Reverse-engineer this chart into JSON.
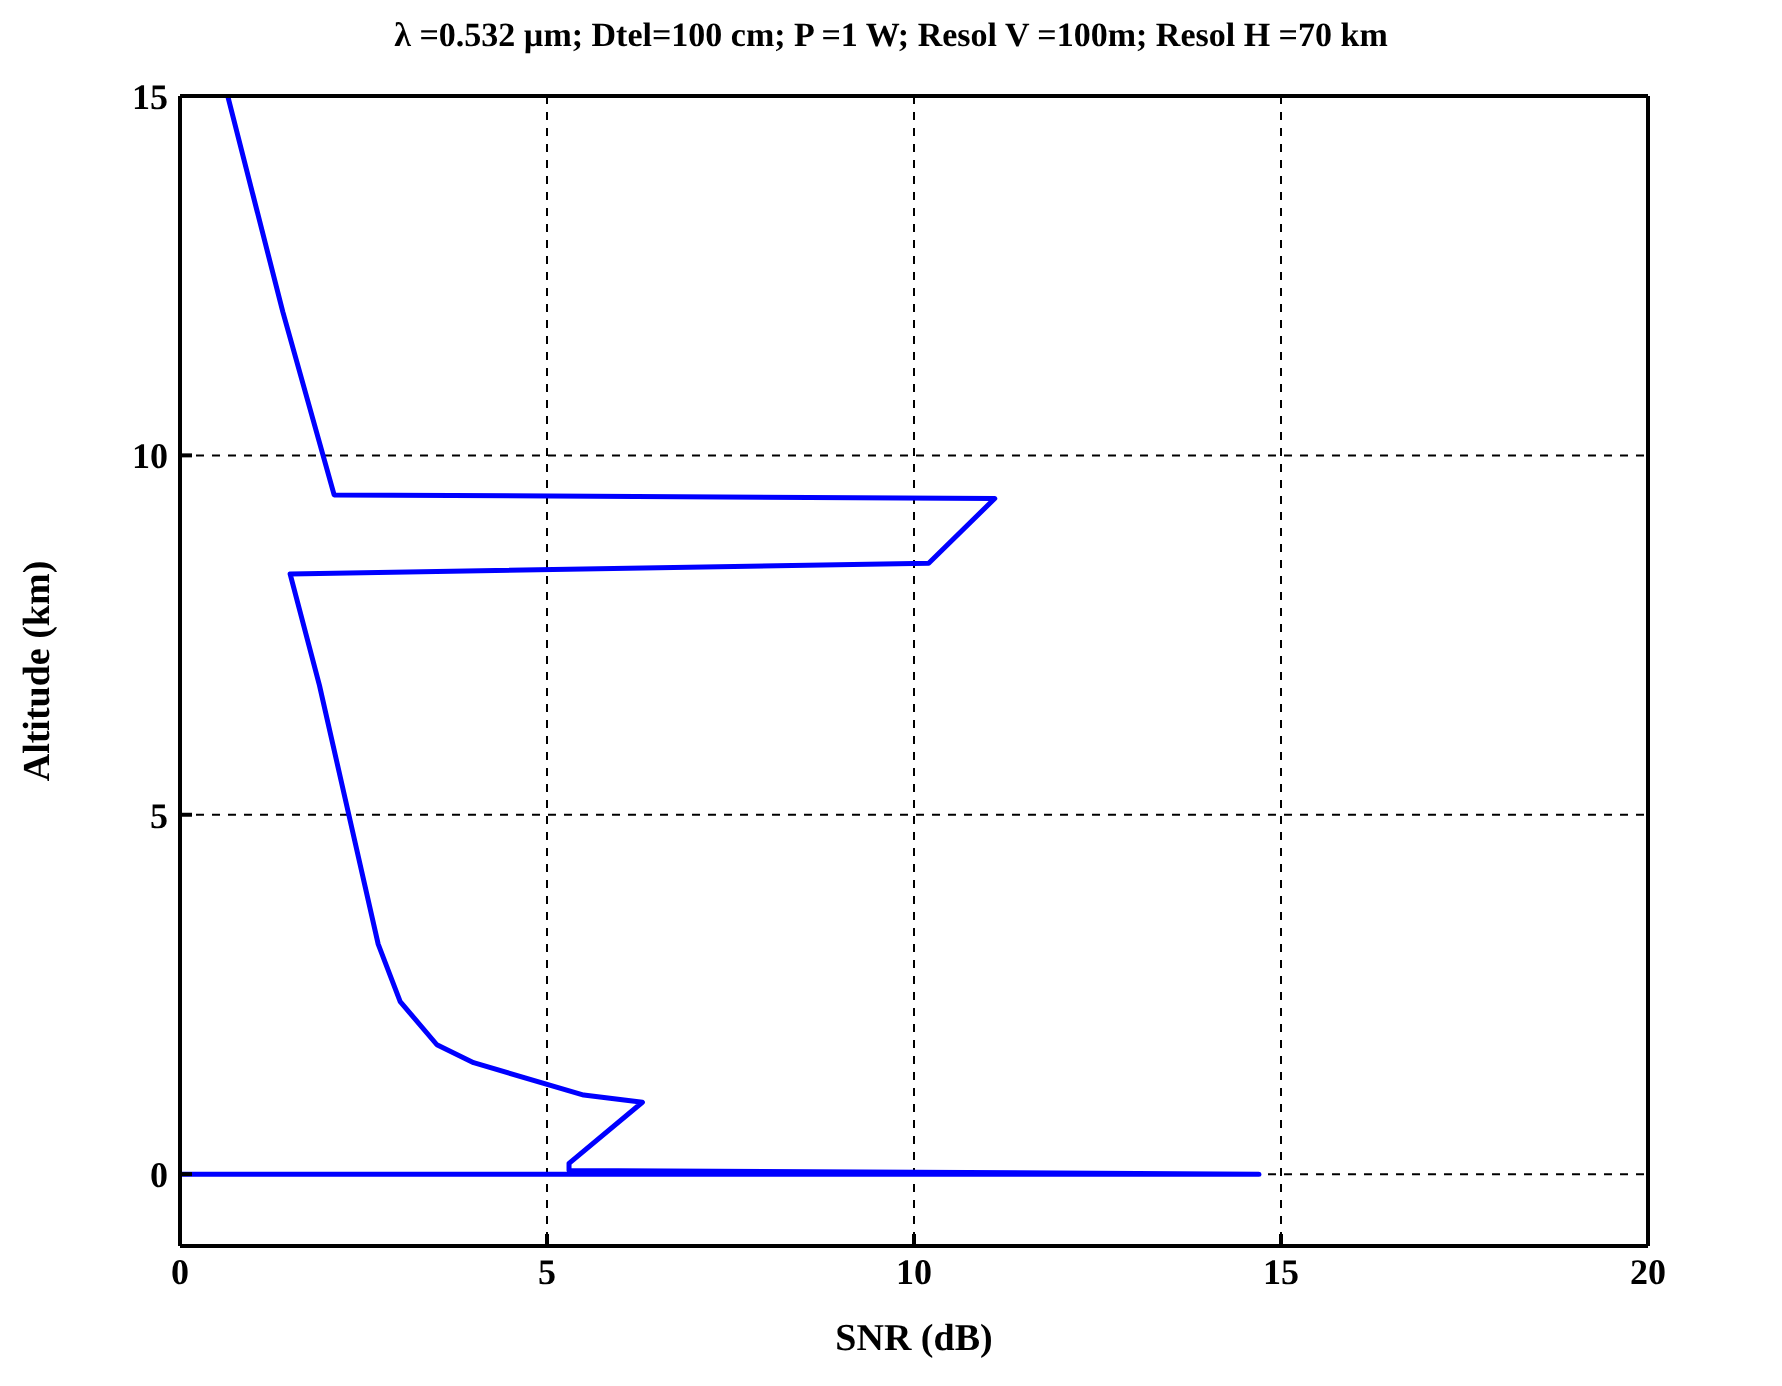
{
  "chart_data": {
    "type": "line",
    "title": "λ =0.532 µm;  Dtel=100 cm; P =1 W;  Resol V =100m;  Resol H =70 km",
    "xlabel": "SNR (dB)",
    "ylabel": "Altitude (km)",
    "x": [
      0,
      14.7,
      5.3,
      5.3,
      6.3,
      5.5,
      4.0,
      3.5,
      3.0,
      2.7,
      2.3,
      1.9,
      1.5,
      10.2,
      11.1,
      2.1,
      1.4,
      0.65
    ],
    "series": [
      {
        "color": "#0000ff",
        "values": [
          0,
          0,
          0.05,
          0.15,
          1.0,
          1.1,
          1.55,
          1.8,
          2.4,
          3.2,
          5.0,
          6.8,
          8.35,
          8.5,
          9.4,
          9.45,
          12,
          15
        ]
      }
    ],
    "xlim": [
      0,
      20
    ],
    "xticks": [
      0,
      5,
      10,
      15,
      20
    ],
    "ylim": [
      -1,
      15
    ],
    "yticks": [
      0,
      5,
      10,
      15
    ],
    "grid": true,
    "marker": "none",
    "line_style": "solid"
  }
}
